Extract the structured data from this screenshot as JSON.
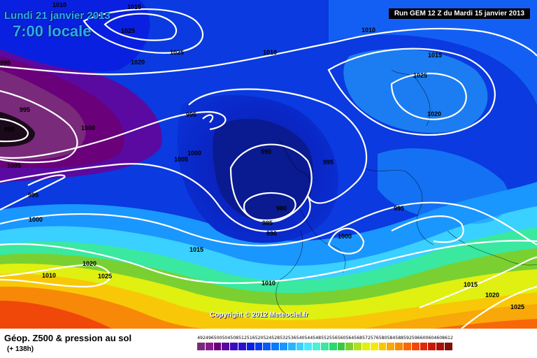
{
  "header": {
    "date": "Lundi 21 janvier 2013",
    "time": "7:00 locale",
    "run": "Run GEM 12 Z du Mardi 15 janvier 2013"
  },
  "copyright": "Copyright © 2012 Meteociel.fr",
  "footer": {
    "title": "Géop. Z500 & pression au sol",
    "subtitle": "(+ 138h)"
  },
  "scale": {
    "labels": [
      "492",
      "496",
      "500",
      "504",
      "508",
      "512",
      "516",
      "520",
      "524",
      "528",
      "532",
      "536",
      "540",
      "544",
      "548",
      "552",
      "556",
      "560",
      "564",
      "568",
      "572",
      "576",
      "580",
      "584",
      "588",
      "592",
      "596",
      "600",
      "604",
      "608",
      "612"
    ],
    "colors": [
      "#7a2a7a",
      "#8a1a8a",
      "#6a007a",
      "#5a0aa0",
      "#3a0ac0",
      "#2a10d0",
      "#0a20e0",
      "#0a3af0",
      "#0a5af8",
      "#0a78ff",
      "#1a96ff",
      "#2ab4ff",
      "#3ad0ff",
      "#4ae8ff",
      "#4af0d8",
      "#3ae8a0",
      "#2ad870",
      "#3ac840",
      "#7ad030",
      "#b0e020",
      "#e0f010",
      "#f8e808",
      "#f8c808",
      "#f8a808",
      "#f88808",
      "#f86808",
      "#f04808",
      "#e02808",
      "#c81808",
      "#a81008",
      "#801008"
    ]
  },
  "isobars": [
    "1015",
    "1010",
    "1025",
    "1020",
    "1025",
    "1010",
    "1015",
    "1025",
    "995",
    "990",
    "995",
    "1000",
    "995",
    "1005",
    "1000",
    "1000",
    "1005",
    "995",
    "990",
    "995",
    "1000",
    "980",
    "985",
    "990",
    "1000",
    "995",
    "1015",
    "1020",
    "1010",
    "1025",
    "1010",
    "1015",
    "1020",
    "1025"
  ],
  "icons": {
    "map": "weather-map"
  }
}
